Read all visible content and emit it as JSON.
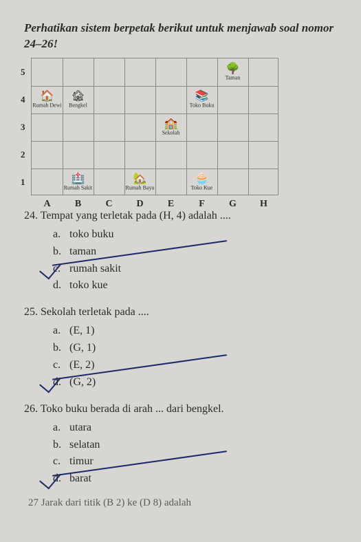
{
  "instruction": "Perhatikan sistem berpetak berikut untuk menjawab soal nomor 24–26!",
  "grid": {
    "rows": [
      "5",
      "4",
      "3",
      "2",
      "1"
    ],
    "cols": [
      "A",
      "B",
      "C",
      "D",
      "E",
      "F",
      "G",
      "H"
    ],
    "places": [
      {
        "label": "Rumah Dewi",
        "col": "A",
        "row": "4",
        "icon": "🏠"
      },
      {
        "label": "Bengkel",
        "col": "B",
        "row": "4",
        "icon": "🏚"
      },
      {
        "label": "Toko Buku",
        "col": "F",
        "row": "4",
        "icon": "📚"
      },
      {
        "label": "Taman",
        "col": "G",
        "row": "5",
        "icon": "🌳"
      },
      {
        "label": "Sekolah",
        "col": "E",
        "row": "3",
        "icon": "🏫"
      },
      {
        "label": "Rumah Sakit",
        "col": "B",
        "row": "1",
        "icon": "🏥"
      },
      {
        "label": "Rumah Bayu",
        "col": "D",
        "row": "1",
        "icon": "🏡"
      },
      {
        "label": "Toko Kue",
        "col": "F",
        "row": "1",
        "icon": "🧁"
      }
    ]
  },
  "q24": {
    "num": "24.",
    "text": "Tempat yang terletak pada (H, 4) adalah ....",
    "opts": [
      {
        "l": "a.",
        "t": "toko buku"
      },
      {
        "l": "b.",
        "t": "taman"
      },
      {
        "l": "c.",
        "t": "rumah sakit"
      },
      {
        "l": "d.",
        "t": "toko kue"
      }
    ]
  },
  "q25": {
    "num": "25.",
    "text": "Sekolah terletak pada ....",
    "opts": [
      {
        "l": "a.",
        "t": "(E, 1)"
      },
      {
        "l": "b.",
        "t": "(G, 1)"
      },
      {
        "l": "c.",
        "t": "(E, 2)"
      },
      {
        "l": "d.",
        "t": "(G, 2)"
      }
    ]
  },
  "q26": {
    "num": "26.",
    "text": "Toko buku berada di arah ... dari bengkel.",
    "opts": [
      {
        "l": "a.",
        "t": "utara"
      },
      {
        "l": "b.",
        "t": "selatan"
      },
      {
        "l": "c.",
        "t": "timur"
      },
      {
        "l": "d.",
        "t": "barat"
      }
    ]
  },
  "cutoff": "27  Jarak dari titik (B  2) ke (D  8) adalah"
}
